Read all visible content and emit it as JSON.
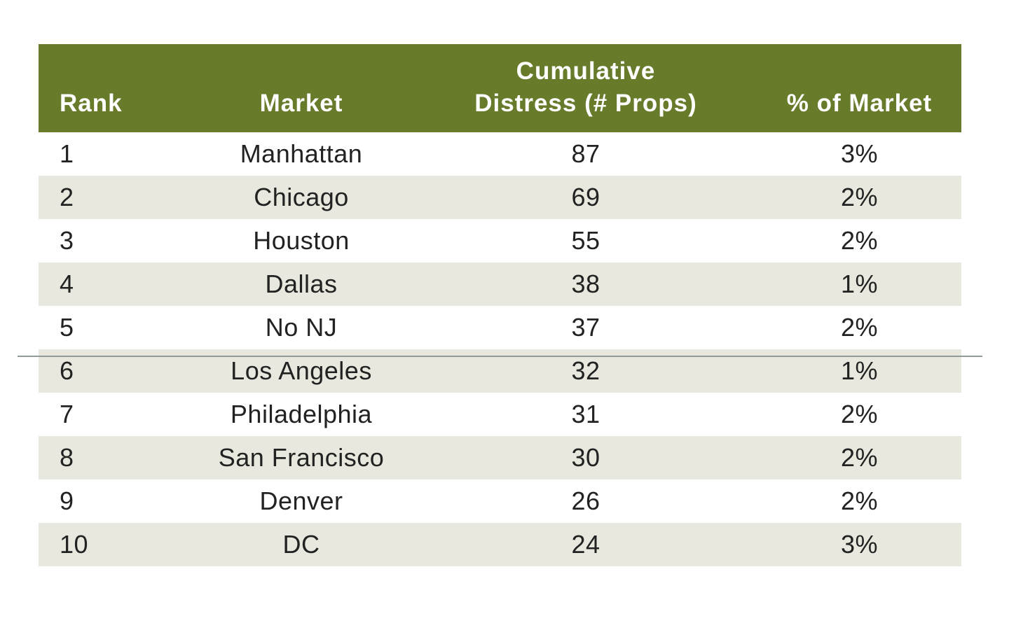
{
  "colors": {
    "header_bg": "#677b2b",
    "header_text": "#ffffff",
    "band_row": "#e8e8de",
    "plain_row": "#ffffff",
    "divider": "#8f9a99"
  },
  "chart_data": {
    "type": "table",
    "columns": [
      "Rank",
      "Market",
      "Cumulative Distress (# Props)",
      "% of Market"
    ],
    "header_lines": {
      "rank": [
        "Rank"
      ],
      "market": [
        "Market"
      ],
      "distress": [
        "Cumulative",
        "Distress (# Props)"
      ],
      "pct": [
        "% of Market"
      ]
    },
    "rows": [
      {
        "rank": "1",
        "market": "Manhattan",
        "distress": 87,
        "pct": "3%"
      },
      {
        "rank": "2",
        "market": "Chicago",
        "distress": 69,
        "pct": "2%"
      },
      {
        "rank": "3",
        "market": "Houston",
        "distress": 55,
        "pct": "2%"
      },
      {
        "rank": "4",
        "market": "Dallas",
        "distress": 38,
        "pct": "1%"
      },
      {
        "rank": "5",
        "market": "No NJ",
        "distress": 37,
        "pct": "2%"
      },
      {
        "rank": "6",
        "market": "Los Angeles",
        "distress": 32,
        "pct": "1%"
      },
      {
        "rank": "7",
        "market": "Philadelphia",
        "distress": 31,
        "pct": "2%"
      },
      {
        "rank": "8",
        "market": "San Francisco",
        "distress": 30,
        "pct": "2%"
      },
      {
        "rank": "9",
        "market": "Denver",
        "distress": 26,
        "pct": "2%"
      },
      {
        "rank": "10",
        "market": "DC",
        "distress": 24,
        "pct": "3%"
      }
    ],
    "divider_after_rank": 5
  }
}
